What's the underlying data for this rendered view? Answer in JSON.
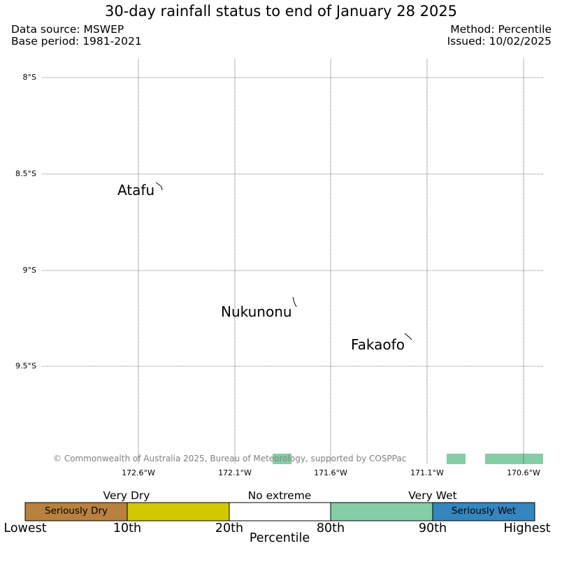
{
  "header": {
    "title": "30-day rainfall status to end of January 28 2025",
    "source_line1": "Data source: MSWEP",
    "source_line2": "Base period: 1981-2021",
    "method_line1": "Method: Percentile",
    "method_line2": "Issued: 10/02/2025"
  },
  "map": {
    "lat_labels": [
      "8°S",
      "8.5°S",
      "9°S",
      "9.5°S"
    ],
    "lon_labels": [
      "172.6°W",
      "172.1°W",
      "171.6°W",
      "171.1°W",
      "170.6°W"
    ],
    "places": [
      "Atafu",
      "Nukunonu",
      "Fakaofo"
    ],
    "copyright": "© Commonwealth of Australia 2025, Bureau of Meteorology, supported by COSPPac",
    "grid": true,
    "rain_cell_color": "#84cda5"
  },
  "legend": {
    "categories_above": [
      "Very Dry",
      "No extreme",
      "Very Wet"
    ],
    "box_labels": [
      "Seriously Dry",
      "Seriously Wet"
    ],
    "colors": [
      "#b8813e",
      "#d2c900",
      "#ffffff",
      "#84cda5",
      "#3586bf"
    ],
    "ticks": [
      "Lowest",
      "10th",
      "20th",
      "80th",
      "90th",
      "Highest"
    ],
    "axis_label": "Percentile"
  }
}
